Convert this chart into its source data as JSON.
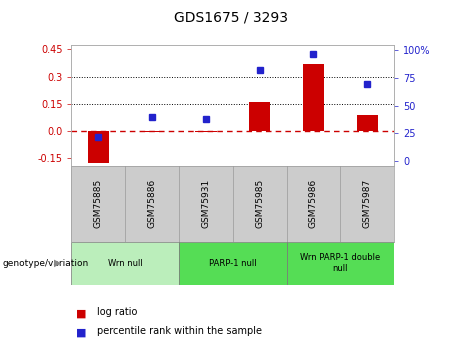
{
  "title": "GDS1675 / 3293",
  "samples": [
    "GSM75885",
    "GSM75886",
    "GSM75931",
    "GSM75985",
    "GSM75986",
    "GSM75987"
  ],
  "log_ratio": [
    -0.175,
    -0.005,
    -0.005,
    0.16,
    0.37,
    0.09
  ],
  "percentile_rank": [
    22,
    40,
    38,
    82,
    97,
    70
  ],
  "ylim_left": [
    -0.19,
    0.475
  ],
  "ylim_right": [
    -4,
    105
  ],
  "yticks_left": [
    -0.15,
    0.0,
    0.15,
    0.3,
    0.45
  ],
  "yticks_right": [
    0,
    25,
    50,
    75,
    100
  ],
  "bar_color": "#cc0000",
  "dot_color": "#2222cc",
  "zero_line_color": "#cc0000",
  "dotted_line_color": "#000000",
  "tick_color_left": "#cc0000",
  "tick_color_right": "#2222cc",
  "bg_sample_row": "#cccccc",
  "group_info": [
    [
      0,
      1,
      "Wrn null",
      "#bbeebb"
    ],
    [
      2,
      3,
      "PARP-1 null",
      "#55dd55"
    ],
    [
      4,
      5,
      "Wrn PARP-1 double\nnull",
      "#55dd55"
    ]
  ]
}
